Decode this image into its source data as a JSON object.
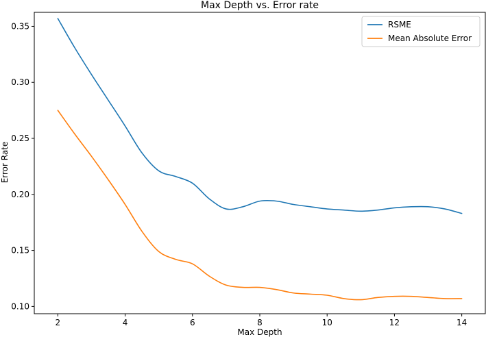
{
  "chart_data": {
    "type": "line",
    "title": "Max Depth vs. Error rate",
    "xlabel": "Max Depth",
    "ylabel": "Error Rate",
    "xlim": [
      1.3,
      14.7
    ],
    "ylim": [
      0.0935,
      0.3625
    ],
    "xticks": [
      2,
      4,
      6,
      8,
      10,
      12,
      14
    ],
    "xtick_labels": [
      "2",
      "4",
      "6",
      "8",
      "10",
      "12",
      "14"
    ],
    "yticks": [
      0.1,
      0.15,
      0.2,
      0.25,
      0.3,
      0.35
    ],
    "ytick_labels": [
      "0.10",
      "0.15",
      "0.20",
      "0.25",
      "0.30",
      "0.35"
    ],
    "grid": false,
    "legend_position": "top-right",
    "x": [
      2,
      2.5,
      3,
      3.5,
      4,
      4.5,
      5,
      5.5,
      6,
      6.5,
      7,
      7.5,
      8,
      8.5,
      9,
      9.5,
      10,
      10.5,
      11,
      11.5,
      12,
      12.5,
      13,
      13.5,
      14
    ],
    "series": [
      {
        "name": "RSME",
        "color": "#1f77b4",
        "values": [
          0.357,
          0.331,
          0.307,
          0.284,
          0.261,
          0.237,
          0.221,
          0.216,
          0.21,
          0.196,
          0.187,
          0.189,
          0.194,
          0.194,
          0.191,
          0.189,
          0.187,
          0.186,
          0.185,
          0.186,
          0.188,
          0.189,
          0.189,
          0.187,
          0.183
        ]
      },
      {
        "name": "Mean Absolute Error",
        "color": "#ff7f0e",
        "values": [
          0.275,
          0.254,
          0.234,
          0.213,
          0.191,
          0.167,
          0.149,
          0.142,
          0.138,
          0.127,
          0.119,
          0.117,
          0.117,
          0.115,
          0.112,
          0.111,
          0.11,
          0.107,
          0.106,
          0.108,
          0.109,
          0.109,
          0.108,
          0.107,
          0.107
        ]
      }
    ]
  }
}
